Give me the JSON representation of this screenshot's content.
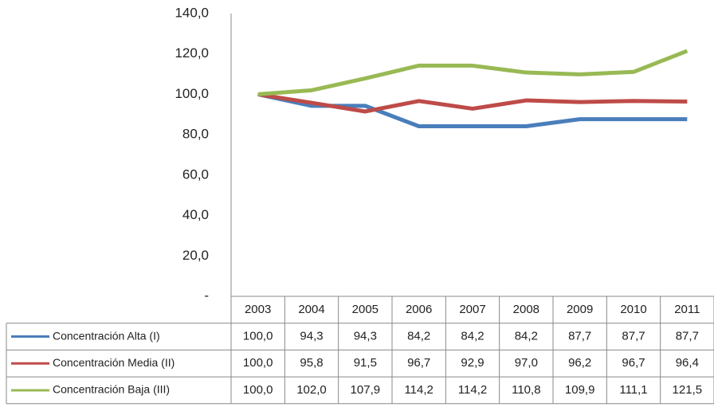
{
  "chart_data": {
    "type": "line",
    "categories": [
      "2003",
      "2004",
      "2005",
      "2006",
      "2007",
      "2008",
      "2009",
      "2010",
      "2011"
    ],
    "series": [
      {
        "name": "Concentración Alta (I)",
        "color": "#4a7ebb",
        "values": [
          100.0,
          94.3,
          94.3,
          84.2,
          84.2,
          84.2,
          87.7,
          87.7,
          87.7
        ],
        "value_labels": [
          "100,0",
          "94,3",
          "94,3",
          "84,2",
          "84,2",
          "84,2",
          "87,7",
          "87,7",
          "87,7"
        ]
      },
      {
        "name": "Concentración  Media (II)",
        "color": "#be4b48",
        "values": [
          100.0,
          95.8,
          91.5,
          96.7,
          92.9,
          97.0,
          96.2,
          96.7,
          96.4
        ],
        "value_labels": [
          "100,0",
          "95,8",
          "91,5",
          "96,7",
          "92,9",
          "97,0",
          "96,2",
          "96,7",
          "96,4"
        ]
      },
      {
        "name": "Concentración  Baja (III)",
        "color": "#98b954",
        "values": [
          100.0,
          102.0,
          107.9,
          114.2,
          114.2,
          110.8,
          109.9,
          111.1,
          121.5
        ],
        "value_labels": [
          "100,0",
          "102,0",
          "107,9",
          "114,2",
          "114,2",
          "110,8",
          "109,9",
          "111,1",
          "121,5"
        ]
      }
    ],
    "ylim": [
      0,
      140
    ],
    "yticks": [
      {
        "value": 0,
        "label": "-"
      },
      {
        "value": 20,
        "label": "20,0"
      },
      {
        "value": 40,
        "label": "40,0"
      },
      {
        "value": 60,
        "label": "60,0"
      },
      {
        "value": 80,
        "label": "80,0"
      },
      {
        "value": 100,
        "label": "100,0"
      },
      {
        "value": 120,
        "label": "120,0"
      },
      {
        "value": 140,
        "label": "140,0"
      }
    ],
    "grid": false
  }
}
